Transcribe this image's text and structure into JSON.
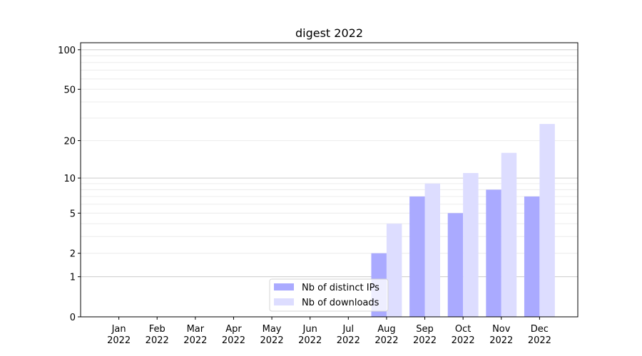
{
  "chart_data": {
    "type": "bar",
    "title": "digest 2022",
    "xlabel": "",
    "ylabel": "",
    "yscale": "log(1+y)",
    "ylim": [
      0,
      113
    ],
    "yticks": [
      0,
      1,
      2,
      5,
      10,
      20,
      50,
      100
    ],
    "grid": true,
    "legend_position": "lower-center",
    "categories": [
      "Jan\n2022",
      "Feb\n2022",
      "Mar\n2022",
      "Apr\n2022",
      "May\n2022",
      "Jun\n2022",
      "Jul\n2022",
      "Aug\n2022",
      "Sep\n2022",
      "Oct\n2022",
      "Nov\n2022",
      "Dec\n2022"
    ],
    "series": [
      {
        "name": "Nb of distinct IPs",
        "color": "#aaaaff",
        "values": [
          0,
          0,
          0,
          0,
          0,
          0,
          0,
          2,
          7,
          5,
          8,
          7
        ]
      },
      {
        "name": "Nb of downloads",
        "color": "#ddddff",
        "values": [
          0,
          0,
          0,
          0,
          0,
          0,
          0,
          4,
          9,
          11,
          16,
          27
        ]
      }
    ]
  }
}
